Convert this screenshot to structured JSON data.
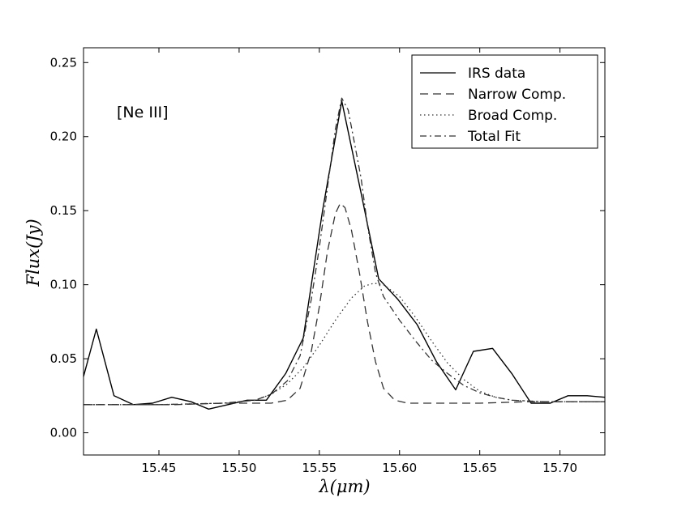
{
  "chart_data": {
    "type": "line",
    "xlabel": "λ(μm)",
    "ylabel": "Flux(Jy)",
    "xlim": [
      15.403,
      15.728
    ],
    "ylim": [
      -0.015,
      0.26
    ],
    "xticks": [
      15.45,
      15.5,
      15.55,
      15.6,
      15.65,
      15.7
    ],
    "xtick_labels": [
      "15.45",
      "15.50",
      "15.55",
      "15.60",
      "15.65",
      "15.70"
    ],
    "yticks": [
      0.0,
      0.05,
      0.1,
      0.15,
      0.2,
      0.25
    ],
    "ytick_labels": [
      "0.00",
      "0.05",
      "0.10",
      "0.15",
      "0.20",
      "0.25"
    ],
    "grid": false,
    "legend_position": "top-right",
    "annotation": "[Ne III]",
    "series": [
      {
        "name": "IRS data",
        "style": "solid",
        "color": "#000000",
        "x": [
          15.403,
          15.411,
          15.422,
          15.434,
          15.446,
          15.458,
          15.47,
          15.481,
          15.493,
          15.505,
          15.517,
          15.529,
          15.54,
          15.552,
          15.564,
          15.576,
          15.587,
          15.599,
          15.611,
          15.623,
          15.635,
          15.646,
          15.658,
          15.67,
          15.682,
          15.694,
          15.705,
          15.717,
          15.728
        ],
        "y": [
          0.038,
          0.07,
          0.025,
          0.019,
          0.02,
          0.024,
          0.021,
          0.016,
          0.019,
          0.022,
          0.022,
          0.04,
          0.064,
          0.15,
          0.224,
          0.162,
          0.104,
          0.09,
          0.073,
          0.048,
          0.029,
          0.055,
          0.057,
          0.04,
          0.02,
          0.02,
          0.025,
          0.025,
          0.024
        ]
      },
      {
        "name": "Narrow Comp.",
        "style": "dashed",
        "color": "#333333",
        "x": [
          15.403,
          15.43,
          15.46,
          15.49,
          15.52,
          15.53,
          15.538,
          15.545,
          15.55,
          15.555,
          15.56,
          15.563,
          15.566,
          15.57,
          15.575,
          15.58,
          15.585,
          15.59,
          15.597,
          15.605,
          15.62,
          15.65,
          15.68,
          15.71,
          15.728
        ],
        "y": [
          0.019,
          0.019,
          0.019,
          0.02,
          0.02,
          0.022,
          0.03,
          0.055,
          0.085,
          0.122,
          0.148,
          0.155,
          0.152,
          0.137,
          0.108,
          0.075,
          0.048,
          0.03,
          0.022,
          0.02,
          0.02,
          0.02,
          0.021,
          0.021,
          0.021
        ]
      },
      {
        "name": "Broad Comp.",
        "style": "dotted",
        "color": "#333333",
        "x": [
          15.403,
          15.45,
          15.49,
          15.51,
          15.52,
          15.53,
          15.54,
          15.55,
          15.56,
          15.57,
          15.578,
          15.584,
          15.59,
          15.6,
          15.61,
          15.62,
          15.63,
          15.64,
          15.65,
          15.66,
          15.67,
          15.69,
          15.71,
          15.728
        ],
        "y": [
          0.019,
          0.019,
          0.02,
          0.022,
          0.026,
          0.033,
          0.044,
          0.059,
          0.076,
          0.091,
          0.099,
          0.101,
          0.1,
          0.092,
          0.078,
          0.062,
          0.047,
          0.036,
          0.028,
          0.024,
          0.022,
          0.021,
          0.021,
          0.021
        ]
      },
      {
        "name": "Total Fit",
        "style": "dashdot",
        "color": "#333333",
        "x": [
          15.403,
          15.45,
          15.49,
          15.51,
          15.52,
          15.53,
          15.538,
          15.545,
          15.55,
          15.555,
          15.56,
          15.564,
          15.568,
          15.572,
          15.576,
          15.58,
          15.585,
          15.59,
          15.6,
          15.61,
          15.62,
          15.63,
          15.64,
          15.65,
          15.66,
          15.67,
          15.69,
          15.71,
          15.728
        ],
        "y": [
          0.019,
          0.019,
          0.02,
          0.022,
          0.026,
          0.035,
          0.052,
          0.09,
          0.125,
          0.165,
          0.205,
          0.226,
          0.218,
          0.195,
          0.172,
          0.14,
          0.108,
          0.092,
          0.076,
          0.062,
          0.049,
          0.04,
          0.032,
          0.027,
          0.024,
          0.022,
          0.021,
          0.021,
          0.021
        ]
      }
    ]
  }
}
